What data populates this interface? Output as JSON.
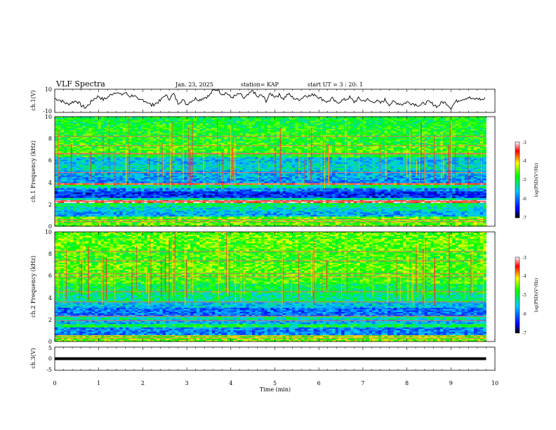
{
  "header": {
    "title": "VLF Spectra",
    "date": "Jan. 23, 2025",
    "station": "station= KAP",
    "start_ut": "start UT =  3 : 20: 1"
  },
  "chart_data": [
    {
      "type": "line",
      "name": "ch1-waveform",
      "ylabel": "ch.1(V)",
      "ylim": [
        -10,
        10
      ],
      "ytick_labels": [
        "10",
        "-10"
      ],
      "x": [
        0,
        0.1,
        0.2,
        0.3,
        0.4,
        0.5,
        0.6,
        0.7,
        0.8,
        0.9,
        1.0,
        1.1,
        1.2,
        1.3,
        1.4,
        1.5,
        1.6,
        1.7,
        1.8,
        1.9,
        2.0,
        2.1,
        2.2,
        2.3,
        2.4,
        2.5,
        2.6,
        2.7,
        2.8,
        2.9,
        3.0,
        3.1,
        3.2,
        3.3,
        3.4,
        3.5,
        3.6,
        3.7,
        3.8,
        3.9,
        4.0,
        4.1,
        4.2,
        4.3,
        4.4,
        4.5,
        4.6,
        4.7,
        4.8,
        4.9,
        5.0,
        5.1,
        5.2,
        5.3,
        5.4,
        5.5,
        5.6,
        5.7,
        5.8,
        5.9,
        6.0,
        6.1,
        6.2,
        6.3,
        6.4,
        6.5,
        6.6,
        6.7,
        6.8,
        6.9,
        7.0,
        7.1,
        7.2,
        7.3,
        7.4,
        7.5,
        7.6,
        7.7,
        7.8,
        7.9,
        8.0,
        8.1,
        8.2,
        8.3,
        8.4,
        8.5,
        8.6,
        8.7,
        8.8,
        8.9,
        9.0,
        9.1,
        9.2,
        9.3,
        9.4,
        9.5,
        9.6,
        9.7,
        9.8
      ],
      "y": [
        2,
        1,
        -1,
        -3,
        -1,
        0,
        -4,
        -6,
        -2,
        2,
        4,
        1,
        3,
        6,
        8,
        5,
        7,
        4,
        5,
        0,
        1,
        -1,
        -4,
        -2,
        0,
        5,
        2,
        6,
        -2,
        1,
        -3,
        0,
        2,
        1,
        3,
        4,
        9,
        10,
        6,
        7,
        3,
        4,
        6,
        2,
        5,
        9,
        3,
        5,
        0,
        6,
        4,
        5,
        2,
        6,
        3,
        1,
        2,
        5,
        4,
        6,
        3,
        1,
        -1,
        2,
        -2,
        0,
        1,
        3,
        -1,
        2,
        0,
        1,
        -1,
        0,
        -2,
        1,
        -3,
        -1,
        -2,
        -3,
        -1,
        -2,
        -3,
        -4,
        -2,
        -1,
        -3,
        -5,
        -1,
        -2,
        -6,
        -1,
        1,
        2,
        3,
        1,
        2,
        1,
        2
      ]
    },
    {
      "type": "heatmap",
      "name": "ch1-spectrogram",
      "ylabel": "ch.1 Frequency (kHz)",
      "ylim": [
        0,
        10
      ],
      "xlim": [
        0,
        9.8
      ],
      "ytick_labels": [
        "0",
        "2",
        "4",
        "6",
        "8",
        "10"
      ],
      "colorbar": {
        "label": "log(PSD)(V²/Hz)",
        "range": [
          -7,
          -3
        ],
        "tick_labels": [
          "-3",
          "-4",
          "-5",
          "-6",
          "-7"
        ]
      },
      "bands": [
        {
          "f": [
            0,
            0.9
          ],
          "level": -4.6
        },
        {
          "f": [
            0.9,
            1.4
          ],
          "level": -5.7
        },
        {
          "f": [
            1.4,
            1.8
          ],
          "level": -5.4
        },
        {
          "f": [
            1.8,
            2.15
          ],
          "level": -5.1
        },
        {
          "f": [
            2.15,
            2.4
          ],
          "level": -3.3
        },
        {
          "f": [
            2.4,
            2.6
          ],
          "level": -5.3
        },
        {
          "f": [
            2.6,
            3.2
          ],
          "level": -6.3
        },
        {
          "f": [
            3.2,
            3.5
          ],
          "level": -5.9
        },
        {
          "f": [
            3.5,
            3.8
          ],
          "level": -5.2
        },
        {
          "f": [
            3.8,
            3.95
          ],
          "level": -3.6
        },
        {
          "f": [
            3.95,
            4.5
          ],
          "level": -5.8
        },
        {
          "f": [
            4.5,
            5.1
          ],
          "level": -5.7
        },
        {
          "f": [
            5.1,
            5.7
          ],
          "level": -5.4
        },
        {
          "f": [
            5.7,
            6.3
          ],
          "level": -5.6
        },
        {
          "f": [
            6.3,
            6.7
          ],
          "level": -4.9
        },
        {
          "f": [
            6.7,
            7.5
          ],
          "level": -4.7
        },
        {
          "f": [
            7.5,
            9.0
          ],
          "level": -4.8
        },
        {
          "f": [
            9.0,
            10.0
          ],
          "level": -4.9
        }
      ],
      "lines_khz": [
        0.4,
        0.6,
        2.25,
        2.3,
        3.85,
        4.9,
        6.6,
        6.65,
        7.35,
        8.2
      ]
    },
    {
      "type": "heatmap",
      "name": "ch2-spectrogram",
      "ylabel": "ch.2 Frequency (kHz)",
      "ylim": [
        0,
        10
      ],
      "xlim": [
        0,
        9.8
      ],
      "ytick_labels": [
        "0",
        "2",
        "4",
        "6",
        "8",
        "10"
      ],
      "colorbar": {
        "label": "log(PSD)(V²/Hz)",
        "range": [
          -7,
          -3
        ],
        "tick_labels": [
          "-3",
          "-4",
          "-5",
          "-6",
          "-7"
        ]
      },
      "bands": [
        {
          "f": [
            0,
            0.6
          ],
          "level": -4.5
        },
        {
          "f": [
            0.6,
            1.3
          ],
          "level": -5.9
        },
        {
          "f": [
            1.3,
            1.6
          ],
          "level": -5.0
        },
        {
          "f": [
            1.6,
            2.0
          ],
          "level": -5.7
        },
        {
          "f": [
            2.0,
            2.3
          ],
          "level": -5.3
        },
        {
          "f": [
            2.3,
            3.1
          ],
          "level": -6.0
        },
        {
          "f": [
            3.1,
            3.6
          ],
          "level": -5.6
        },
        {
          "f": [
            3.6,
            4.4
          ],
          "level": -5.2
        },
        {
          "f": [
            4.4,
            5.3
          ],
          "level": -5.0
        },
        {
          "f": [
            5.3,
            6.3
          ],
          "level": -4.7
        },
        {
          "f": [
            6.3,
            7.2
          ],
          "level": -4.6
        },
        {
          "f": [
            7.2,
            8.3
          ],
          "level": -4.7
        },
        {
          "f": [
            8.3,
            10.0
          ],
          "level": -4.6
        }
      ],
      "lines_khz": [
        0.3,
        0.5,
        1.9,
        2.3,
        3.6,
        4.55,
        5.9,
        6.2,
        7.35,
        8.2
      ]
    },
    {
      "type": "line",
      "name": "ch3-waveform",
      "ylabel": "ch.3(V)",
      "ylim": [
        -5,
        5
      ],
      "ytick_labels": [
        "5",
        "0",
        "-5"
      ],
      "x": [
        0,
        9.8
      ],
      "y": [
        0,
        0
      ],
      "band_halfwidth": 0.6
    }
  ],
  "xaxis": {
    "label": "Time (min)",
    "lim": [
      0,
      10
    ],
    "tick_labels": [
      "0",
      "1",
      "2",
      "3",
      "4",
      "5",
      "6",
      "7",
      "8",
      "9",
      "10"
    ]
  },
  "colors": {
    "palette": [
      "#000000",
      "#0000ff",
      "#00c8ff",
      "#00ff00",
      "#ffff00",
      "#ff0000",
      "#ffffff"
    ]
  }
}
